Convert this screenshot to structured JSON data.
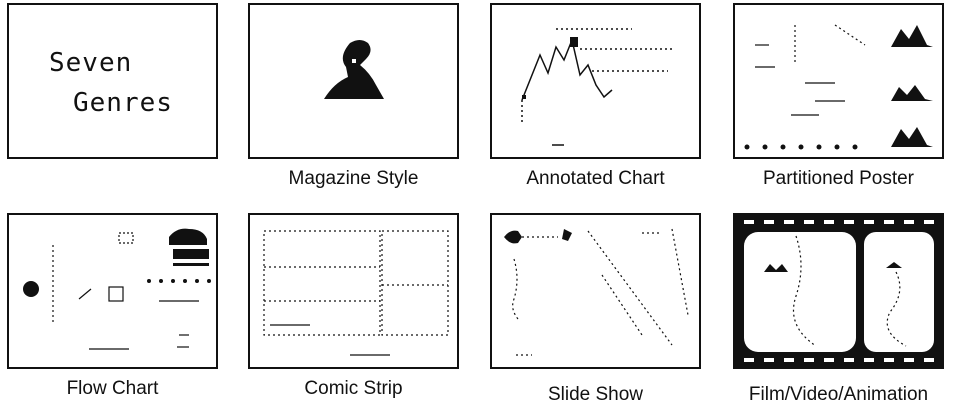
{
  "title_panel": {
    "line1": "Seven",
    "line2": "Genres"
  },
  "genres": [
    {
      "label": "Magazine Style"
    },
    {
      "label": "Annotated Chart"
    },
    {
      "label": "Partitioned Poster"
    },
    {
      "label": "Flow Chart"
    },
    {
      "label": "Comic Strip"
    },
    {
      "label": "Slide Show"
    },
    {
      "label": "Film/Video/Animation"
    }
  ]
}
